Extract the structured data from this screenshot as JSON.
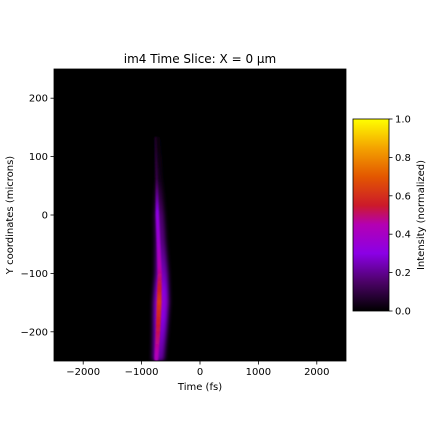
{
  "chart_data": {
    "type": "heatmap",
    "title": "im4 Time Slice: X = 0 µm",
    "xlabel": "Time (fs)",
    "ylabel": "Y coordinates (microns)",
    "xlim": [
      -2500,
      2500
    ],
    "ylim": [
      -250,
      250
    ],
    "xticks": [
      -2000,
      -1000,
      0,
      1000,
      2000
    ],
    "xtick_labels": [
      "−2000",
      "−1000",
      "0",
      "1000",
      "2000"
    ],
    "yticks": [
      -200,
      -100,
      0,
      100,
      200
    ],
    "ytick_labels": [
      "−200",
      "−100",
      "0",
      "100",
      "200"
    ],
    "colormap": "gnuplot",
    "background_color": "#000000",
    "colorbar": {
      "label": "Intensity (normalized)",
      "range": [
        0,
        1
      ],
      "ticks": [
        0,
        0.2,
        0.4,
        0.6,
        0.8,
        1
      ],
      "tick_labels": [
        "0.0",
        "0.2",
        "0.4",
        "0.6",
        "0.8",
        "1.0"
      ],
      "stops": [
        {
          "value": 0.0,
          "color": "#000000"
        },
        {
          "value": 0.15,
          "color": "#4b0266"
        },
        {
          "value": 0.3,
          "color": "#8b00e6"
        },
        {
          "value": 0.45,
          "color": "#b400b3"
        },
        {
          "value": 0.55,
          "color": "#cc1a2a"
        },
        {
          "value": 0.7,
          "color": "#e35700"
        },
        {
          "value": 0.85,
          "color": "#f4a300"
        },
        {
          "value": 1.0,
          "color": "#ffff00"
        }
      ]
    },
    "signal": {
      "description_points": [
        {
          "y": 130,
          "t": -760,
          "intensity": 0.05
        },
        {
          "y": 60,
          "t": -740,
          "intensity": 0.1
        },
        {
          "y": 0,
          "t": -730,
          "intensity": 0.3
        },
        {
          "y": -50,
          "t": -710,
          "intensity": 0.35
        },
        {
          "y": -100,
          "t": -690,
          "intensity": 0.45
        },
        {
          "y": -150,
          "t": -700,
          "intensity": 0.6
        },
        {
          "y": -200,
          "t": -720,
          "intensity": 0.5
        },
        {
          "y": -250,
          "t": -750,
          "intensity": 0.4
        }
      ]
    }
  }
}
